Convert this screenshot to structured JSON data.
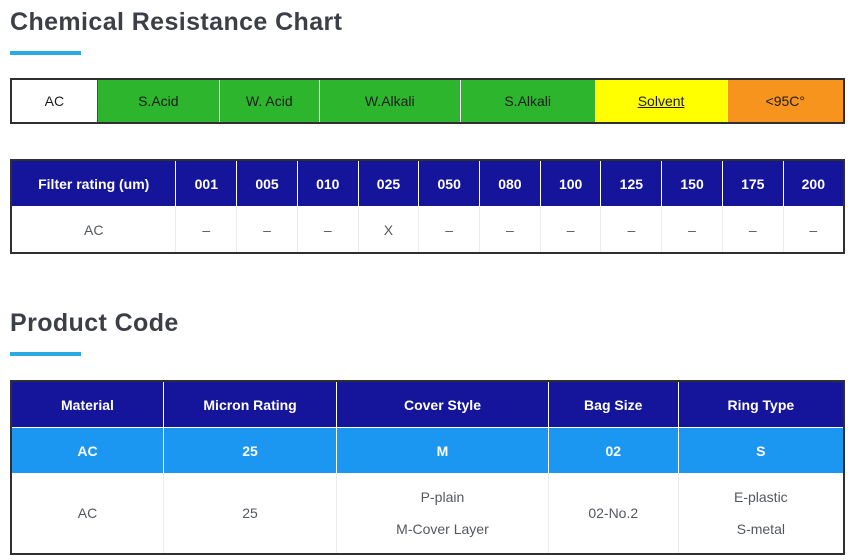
{
  "colors": {
    "accent": "#29abe2",
    "header_navy": "#15159b",
    "code_blue": "#1b97f2",
    "green": "#2eb52e",
    "yellow": "#ffff00",
    "orange": "#f7941d",
    "white": "#ffffff"
  },
  "chemical_section": {
    "title": "Chemical Resistance Chart",
    "resistance_strip": [
      {
        "label": "AC",
        "bg": "#ffffff",
        "link": false
      },
      {
        "label": "S.Acid",
        "bg": "#2eb52e",
        "link": false
      },
      {
        "label": "W. Acid",
        "bg": "#2eb52e",
        "link": false
      },
      {
        "label": "W.Alkali",
        "bg": "#2eb52e",
        "link": false
      },
      {
        "label": "S.Alkali",
        "bg": "#2eb52e",
        "link": false
      },
      {
        "label": "Solvent",
        "bg": "#ffff00",
        "link": true
      },
      {
        "label": "<95C°",
        "bg": "#f7941d",
        "link": false
      }
    ],
    "filter_table": {
      "headers": [
        "Filter rating (um)",
        "001",
        "005",
        "010",
        "025",
        "050",
        "080",
        "100",
        "125",
        "150",
        "175",
        "200"
      ],
      "rows": [
        [
          "AC",
          "–",
          "–",
          "–",
          "X",
          "–",
          "–",
          "–",
          "–",
          "–",
          "–",
          "–"
        ]
      ]
    }
  },
  "product_section": {
    "title": "Product Code",
    "table": {
      "headers": [
        "Material",
        "Micron Rating",
        "Cover Style",
        "Bag Size",
        "Ring Type"
      ],
      "code_row": [
        "AC",
        "25",
        "M",
        "02",
        "S"
      ],
      "detail_row": [
        [
          "AC"
        ],
        [
          "25"
        ],
        [
          "P-plain",
          "M-Cover Layer"
        ],
        [
          "02-No.2"
        ],
        [
          "E-plastic",
          "S-metal"
        ]
      ]
    }
  }
}
